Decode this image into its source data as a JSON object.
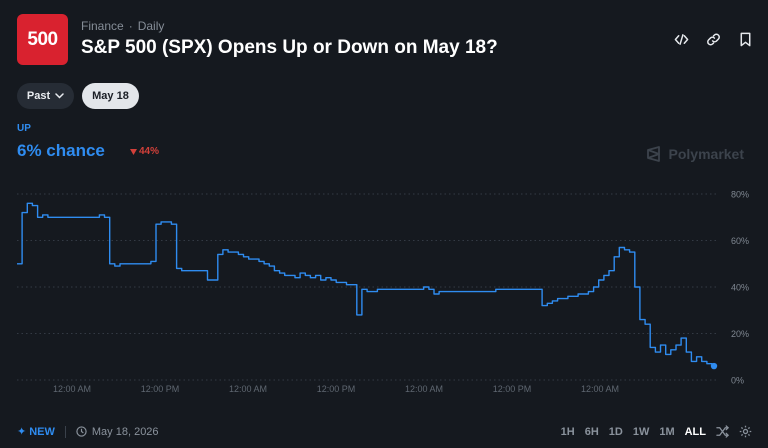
{
  "header": {
    "logo_text": "500",
    "category": "Finance",
    "separator": "·",
    "frequency": "Daily",
    "title": "S&P 500 (SPX) Opens Up or Down on May 18?",
    "icons": [
      "embed-icon",
      "link-icon",
      "bookmark-icon"
    ]
  },
  "filters": {
    "past_label": "Past",
    "date_label": "May 18"
  },
  "outcome": {
    "label": "UP",
    "chance": "6% chance",
    "change": "44%",
    "change_direction": "down"
  },
  "brand": {
    "name": "Polymarket"
  },
  "colors": {
    "accent": "#2f8cf0",
    "logo_bg": "#d9222f",
    "negative": "#d2403a",
    "background": "#15191f"
  },
  "chart_data": {
    "type": "line",
    "series": [
      {
        "values": [
          50,
          72,
          76,
          75,
          70,
          71,
          70,
          70,
          70,
          70,
          70,
          70,
          70,
          70,
          70,
          70,
          71,
          70,
          50,
          49,
          50,
          50,
          50,
          50,
          50,
          50,
          51,
          67,
          68,
          68,
          67,
          48,
          47,
          47,
          47,
          47,
          47,
          43,
          43,
          54,
          56,
          55,
          55,
          54,
          53,
          52,
          52,
          51,
          50,
          49,
          47,
          46,
          45,
          45,
          44,
          46,
          45,
          44,
          45,
          43,
          44,
          43,
          42,
          42,
          41,
          41,
          28,
          39,
          38,
          38,
          39,
          39,
          39,
          39,
          39,
          39,
          39,
          39,
          39,
          40,
          39,
          37,
          38,
          38,
          38,
          38,
          38,
          38,
          38,
          38,
          38,
          38,
          38,
          39,
          39,
          39,
          39,
          39,
          39,
          39,
          39,
          39,
          32,
          33,
          34,
          35,
          35,
          36,
          36,
          37,
          37,
          38,
          40,
          43,
          45,
          47,
          53,
          57,
          56,
          55,
          40,
          26,
          24,
          14,
          12,
          15,
          11,
          13,
          15,
          18,
          12,
          8,
          10,
          8,
          7,
          6
        ]
      }
    ],
    "x_tick_labels": [
      "12:00 AM",
      "12:00 PM",
      "12:00 AM",
      "12:00 PM",
      "12:00 AM",
      "12:00 PM",
      "12:00 AM"
    ],
    "y_tick_labels": [
      "80%",
      "60%",
      "40%",
      "20%",
      "0%"
    ],
    "ylim": [
      0,
      80
    ],
    "grid": true
  },
  "footer": {
    "new_label": "NEW",
    "date": "May 18, 2026",
    "ranges": [
      "1H",
      "6H",
      "1D",
      "1W",
      "1M",
      "ALL"
    ],
    "active_range": "ALL"
  }
}
